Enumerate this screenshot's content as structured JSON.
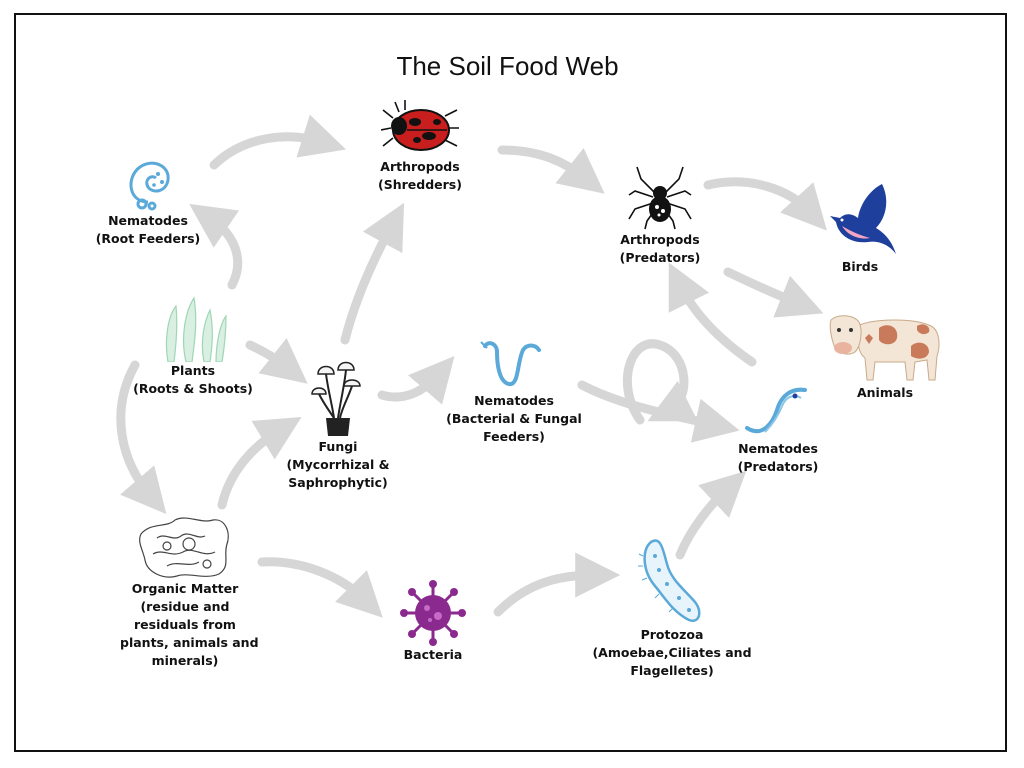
{
  "title": "The Soil Food Web",
  "colors": {
    "arrow": "#d6d6d6",
    "frame": "#111111",
    "nematode_blue": "#5aa9d8",
    "bacteria_purple": "#8b2a8e",
    "bird_blue": "#1f3f9c",
    "plant_green": "#9fd6b5"
  },
  "nodes": {
    "nematodes_root": {
      "icon": "nematode-coiled-icon",
      "line1": "Nematodes",
      "line2": "(Root Feeders)"
    },
    "arthropods_shredders": {
      "icon": "beetle-icon",
      "line1": "Arthropods",
      "line2": "(Shredders)"
    },
    "arthropods_predators": {
      "icon": "spider-icon",
      "line1": "Arthropods",
      "line2": "(Predators)"
    },
    "birds": {
      "icon": "bird-icon",
      "line1": "Birds"
    },
    "animals": {
      "icon": "cow-icon",
      "line1": "Animals"
    },
    "plants": {
      "icon": "plant-leaves-icon",
      "line1": "Plants",
      "line2": "(Roots & Shoots)"
    },
    "fungi": {
      "icon": "mushroom-icon",
      "line1": "Fungi",
      "line2": "(Mycorrhizal &",
      "line3": "Saphrophytic)"
    },
    "nematodes_bf": {
      "icon": "nematode-wave-icon",
      "line1": "Nematodes",
      "line2": "(Bacterial & Fungal",
      "line3": "Feeders)"
    },
    "nematodes_predators": {
      "icon": "nematode-predator-icon",
      "line1": "Nematodes",
      "line2": "(Predators)"
    },
    "organic_matter": {
      "icon": "organic-matter-icon",
      "line1": "Organic Matter",
      "line2": "(residue and",
      "line3": "residuals from",
      "line4": "plants, animals and",
      "line5": "minerals)"
    },
    "bacteria": {
      "icon": "bacteria-icon",
      "line1": "Bacteria"
    },
    "protozoa": {
      "icon": "protozoa-icon",
      "line1": "Protozoa",
      "line2": "(Amoebae,Ciliates and",
      "line3": "Flagelletes)"
    }
  }
}
